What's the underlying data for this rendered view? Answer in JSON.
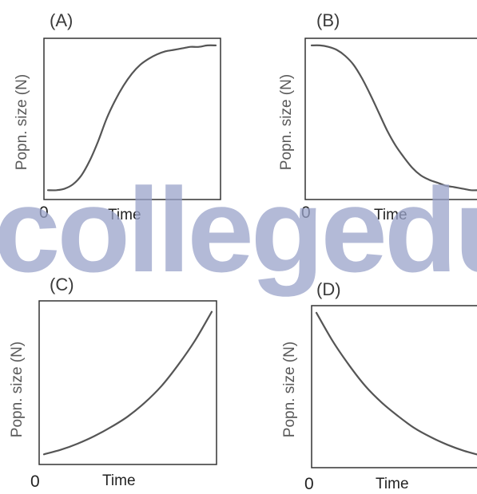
{
  "watermark": {
    "text": "collegedu",
    "color": "#9aa3c9",
    "opacity": 0.75
  },
  "chart_data": [
    {
      "type": "line",
      "panel_label": "(A)",
      "xlabel": "Time",
      "ylabel": "Popn. size (N)",
      "x_origin_label": "0",
      "shape": "sigmoid-growth",
      "xlim": [
        0,
        10
      ],
      "ylim": [
        0,
        1
      ],
      "x": [
        0,
        0.5,
        1,
        1.5,
        2,
        2.5,
        3,
        3.5,
        4,
        4.5,
        5,
        5.5,
        6,
        6.5,
        7,
        7.5,
        8,
        8.5,
        9,
        9.5,
        10
      ],
      "y": [
        0.02,
        0.02,
        0.03,
        0.06,
        0.12,
        0.22,
        0.35,
        0.5,
        0.62,
        0.72,
        0.8,
        0.86,
        0.9,
        0.93,
        0.95,
        0.96,
        0.97,
        0.98,
        0.98,
        0.99,
        0.99
      ]
    },
    {
      "type": "line",
      "panel_label": "(B)",
      "xlabel": "Time",
      "ylabel": "Popn. size (N)",
      "x_origin_label": "0",
      "shape": "sigmoid-decline",
      "xlim": [
        0,
        10
      ],
      "ylim": [
        0,
        1
      ],
      "x": [
        0,
        0.5,
        1,
        1.5,
        2,
        2.5,
        3,
        3.5,
        4,
        4.5,
        5,
        5.5,
        6,
        6.5,
        7,
        7.5,
        8,
        8.5,
        9,
        9.5,
        10
      ],
      "y": [
        0.99,
        0.99,
        0.98,
        0.96,
        0.92,
        0.86,
        0.77,
        0.66,
        0.54,
        0.42,
        0.32,
        0.24,
        0.17,
        0.12,
        0.09,
        0.07,
        0.05,
        0.04,
        0.03,
        0.02,
        0.02
      ]
    },
    {
      "type": "line",
      "panel_label": "(C)",
      "xlabel": "Time",
      "ylabel": "Popn. size (N)",
      "x_origin_label": "0",
      "shape": "exponential-growth",
      "xlim": [
        0,
        10
      ],
      "ylim": [
        0,
        1
      ],
      "x": [
        0,
        1,
        2,
        3,
        4,
        5,
        6,
        7,
        8,
        9,
        10
      ],
      "y": [
        0.03,
        0.06,
        0.1,
        0.15,
        0.21,
        0.28,
        0.37,
        0.48,
        0.62,
        0.78,
        0.97
      ]
    },
    {
      "type": "line",
      "panel_label": "(D)",
      "xlabel": "Time",
      "ylabel": "Popn. size (N)",
      "x_origin_label": "0",
      "shape": "exponential-decay",
      "xlim": [
        0,
        10
      ],
      "ylim": [
        0,
        1
      ],
      "x": [
        0,
        1,
        2,
        3,
        4,
        5,
        6,
        7,
        8,
        9,
        10
      ],
      "y": [
        0.99,
        0.8,
        0.64,
        0.5,
        0.39,
        0.3,
        0.22,
        0.16,
        0.11,
        0.07,
        0.04
      ]
    }
  ]
}
